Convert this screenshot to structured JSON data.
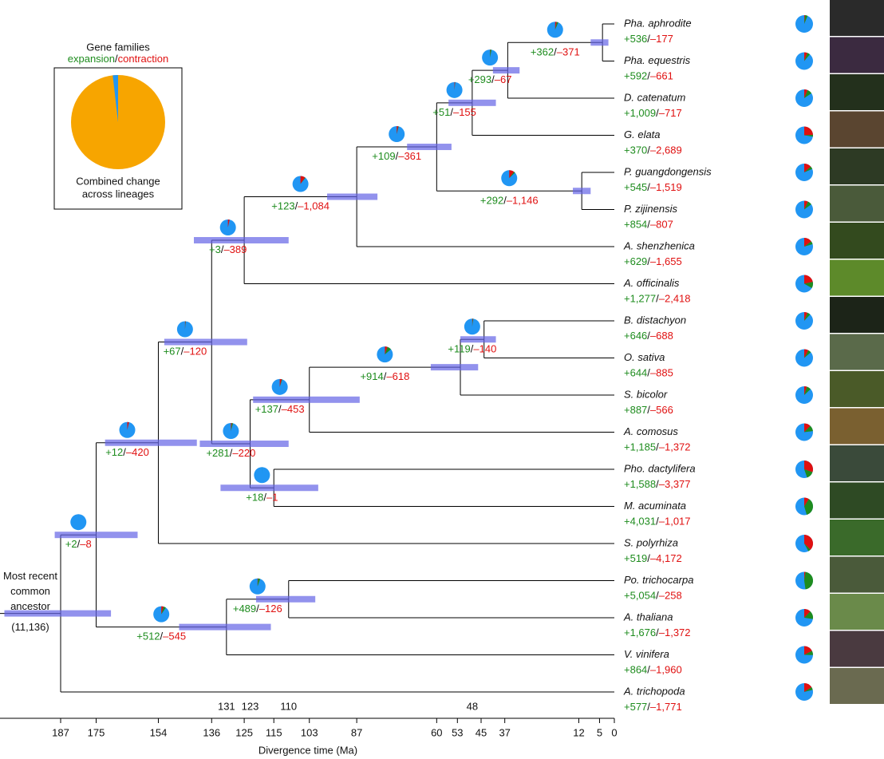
{
  "legend": {
    "title": "Gene families",
    "expansion": "expansion",
    "separator": "/",
    "contraction": "contraction",
    "caption": [
      "Combined change",
      "across lineages"
    ]
  },
  "axis": {
    "title": "Divergence time (Ma)",
    "ticks": [
      187,
      175,
      154,
      136,
      125,
      115,
      103,
      87,
      60,
      53,
      45,
      37,
      12,
      5,
      0
    ],
    "age_labels": [
      131,
      123,
      110,
      48
    ]
  },
  "separator": "/",
  "tree": {
    "age": 187,
    "ci": [
      206,
      170
    ],
    "label": [
      "Most recent",
      "common",
      "ancestor"
    ],
    "count": {
      "value": 11136,
      "label": "(11,136)"
    },
    "children": [
      {
        "age": 175,
        "ci": [
          189,
          161
        ],
        "gain": {
          "value": 2,
          "label": "+2"
        },
        "loss": {
          "value": -8,
          "label": "–8"
        },
        "children": [
          {
            "age": 154,
            "ci": [
              172,
              141
            ],
            "gain": {
              "value": 12,
              "label": "+12"
            },
            "loss": {
              "value": -420,
              "label": "–420"
            },
            "children": [
              {
                "age": 136,
                "ci": [
                  152,
                  124
                ],
                "gain": {
                  "value": 67,
                  "label": "+67"
                },
                "loss": {
                  "value": -120,
                  "label": "–120"
                },
                "children": [
                  {
                    "age": 125,
                    "ci": [
                      142,
                      110
                    ],
                    "gain": {
                      "value": 3,
                      "label": "+3"
                    },
                    "loss": {
                      "value": -389,
                      "label": "–389"
                    },
                    "children": [
                      {
                        "age": 87,
                        "ci": [
                          97,
                          80
                        ],
                        "gain": {
                          "value": 123,
                          "label": "+123"
                        },
                        "loss": {
                          "value": -1084,
                          "label": "–1,084"
                        },
                        "children": [
                          {
                            "age": 60,
                            "ci": [
                              70,
                              55
                            ],
                            "gain": {
                              "value": 109,
                              "label": "+109"
                            },
                            "loss": {
                              "value": -361,
                              "label": "–361"
                            },
                            "children": [
                              {
                                "age": 48,
                                "ci": [
                                  56,
                                  40
                                ],
                                "gain": {
                                  "value": 51,
                                  "label": "+51"
                                },
                                "loss": {
                                  "value": -155,
                                  "label": "–155"
                                },
                                "children": [
                                  {
                                    "age": 36,
                                    "ci": [
                                      41,
                                      32
                                    ],
                                    "gain": {
                                      "value": 293,
                                      "label": "+293"
                                    },
                                    "loss": {
                                      "value": -67,
                                      "label": "–67"
                                    },
                                    "children": [
                                      {
                                        "age": 4,
                                        "ci": [
                                          8,
                                          2
                                        ],
                                        "gain": {
                                          "value": 362,
                                          "label": "+362"
                                        },
                                        "loss": {
                                          "value": -371,
                                          "label": "–371"
                                        },
                                        "children": [
                                          {
                                            "name": "Pha. aphrodite",
                                            "gain": {
                                              "value": 536,
                                              "label": "+536"
                                            },
                                            "loss": {
                                              "value": -177,
                                              "label": "–177"
                                            }
                                          },
                                          {
                                            "name": "Pha. equestris",
                                            "gain": {
                                              "value": 592,
                                              "label": "+592"
                                            },
                                            "loss": {
                                              "value": -661,
                                              "label": "–661"
                                            }
                                          }
                                        ]
                                      },
                                      {
                                        "name": "D. catenatum",
                                        "gain": {
                                          "value": 1009,
                                          "label": "+1,009"
                                        },
                                        "loss": {
                                          "value": -717,
                                          "label": "–717"
                                        }
                                      }
                                    ]
                                  },
                                  {
                                    "name": "G. elata",
                                    "gain": {
                                      "value": 370,
                                      "label": "+370"
                                    },
                                    "loss": {
                                      "value": -2689,
                                      "label": "–2,689"
                                    }
                                  }
                                ]
                              },
                              {
                                "age": 11,
                                "ci": [
                                  14,
                                  8
                                ],
                                "gain": {
                                  "value": 292,
                                  "label": "+292"
                                },
                                "loss": {
                                  "value": -1146,
                                  "label": "–1,146"
                                },
                                "children": [
                                  {
                                    "name": "P. guangdongensis",
                                    "gain": {
                                      "value": 545,
                                      "label": "+545"
                                    },
                                    "loss": {
                                      "value": -1519,
                                      "label": "–1,519"
                                    }
                                  },
                                  {
                                    "name": "P. zijinensis",
                                    "gain": {
                                      "value": 854,
                                      "label": "+854"
                                    },
                                    "loss": {
                                      "value": -807,
                                      "label": "–807"
                                    }
                                  }
                                ]
                              }
                            ]
                          },
                          {
                            "name": "A. shenzhenica",
                            "gain": {
                              "value": 629,
                              "label": "+629"
                            },
                            "loss": {
                              "value": -1655,
                              "label": "–1,655"
                            }
                          }
                        ]
                      },
                      {
                        "name": "A. officinalis",
                        "gain": {
                          "value": 1277,
                          "label": "+1,277"
                        },
                        "loss": {
                          "value": -2418,
                          "label": "–2,418"
                        }
                      }
                    ]
                  },
                  {
                    "age": 123,
                    "ci": [
                      140,
                      110
                    ],
                    "gain": {
                      "value": 281,
                      "label": "+281"
                    },
                    "loss": {
                      "value": -220,
                      "label": "–220"
                    },
                    "children": [
                      {
                        "age": 103,
                        "ci": [
                          122,
                          86
                        ],
                        "gain": {
                          "value": 137,
                          "label": "+137"
                        },
                        "loss": {
                          "value": -453,
                          "label": "–453"
                        },
                        "children": [
                          {
                            "age": 52,
                            "ci": [
                              62,
                              46
                            ],
                            "gain": {
                              "value": 914,
                              "label": "+914"
                            },
                            "loss": {
                              "value": -618,
                              "label": "–618"
                            },
                            "children": [
                              {
                                "age": 44,
                                "ci": [
                                  52,
                                  40
                                ],
                                "gain": {
                                  "value": 119,
                                  "label": "+119"
                                },
                                "loss": {
                                  "value": -140,
                                  "label": "–140"
                                },
                                "children": [
                                  {
                                    "name": "B. distachyon",
                                    "gain": {
                                      "value": 646,
                                      "label": "+646"
                                    },
                                    "loss": {
                                      "value": -688,
                                      "label": "–688"
                                    }
                                  },
                                  {
                                    "name": "O. sativa",
                                    "gain": {
                                      "value": 644,
                                      "label": "+644"
                                    },
                                    "loss": {
                                      "value": -885,
                                      "label": "–885"
                                    }
                                  }
                                ]
                              },
                              {
                                "name": "S. bicolor",
                                "gain": {
                                  "value": 887,
                                  "label": "+887"
                                },
                                "loss": {
                                  "value": -566,
                                  "label": "–566"
                                }
                              }
                            ]
                          },
                          {
                            "name": "A. comosus",
                            "gain": {
                              "value": 1185,
                              "label": "+1,185"
                            },
                            "loss": {
                              "value": -1372,
                              "label": "–1,372"
                            }
                          }
                        ]
                      },
                      {
                        "age": 115,
                        "ci": [
                          133,
                          100
                        ],
                        "gain": {
                          "value": 18,
                          "label": "+18"
                        },
                        "loss": {
                          "value": -1,
                          "label": "–1"
                        },
                        "children": [
                          {
                            "name": "Pho. dactylifera",
                            "gain": {
                              "value": 1588,
                              "label": "+1,588"
                            },
                            "loss": {
                              "value": -3377,
                              "label": "–3,377"
                            }
                          },
                          {
                            "name": "M. acuminata",
                            "gain": {
                              "value": 4031,
                              "label": "+4,031"
                            },
                            "loss": {
                              "value": -1017,
                              "label": "–1,017"
                            }
                          }
                        ]
                      }
                    ]
                  }
                ]
              },
              {
                "name": "S. polyrhiza",
                "gain": {
                  "value": 519,
                  "label": "+519"
                },
                "loss": {
                  "value": -4172,
                  "label": "–4,172"
                }
              }
            ]
          },
          {
            "age": 131,
            "ci": [
              147,
              116
            ],
            "gain": {
              "value": 512,
              "label": "+512"
            },
            "loss": {
              "value": -545,
              "label": "–545"
            },
            "children": [
              {
                "age": 110,
                "ci": [
                  121,
                  101
                ],
                "gain": {
                  "value": 489,
                  "label": "+489"
                },
                "loss": {
                  "value": -126,
                  "label": "–126"
                },
                "children": [
                  {
                    "name": "Po. trichocarpa",
                    "gain": {
                      "value": 5054,
                      "label": "+5,054"
                    },
                    "loss": {
                      "value": -258,
                      "label": "–258"
                    }
                  },
                  {
                    "name": "A. thaliana",
                    "gain": {
                      "value": 1676,
                      "label": "+1,676"
                    },
                    "loss": {
                      "value": -1372,
                      "label": "–1,372"
                    }
                  }
                ]
              },
              {
                "name": "V. vinifera",
                "gain": {
                  "value": 864,
                  "label": "+864"
                },
                "loss": {
                  "value": -1960,
                  "label": "–1,960"
                }
              }
            ]
          }
        ]
      },
      {
        "name": "A. trichopoda",
        "gain": {
          "value": 577,
          "label": "+577"
        },
        "loss": {
          "value": -1771,
          "label": "–1,771"
        }
      }
    ]
  }
}
